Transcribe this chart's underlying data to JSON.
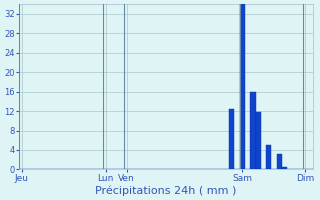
{
  "title": "",
  "xlabel": "Précipitations 24h ( mm )",
  "background_color": "#dff4f4",
  "bar_color": "#1144cc",
  "bar_edge_color": "#0033aa",
  "grid_color": "#aac8c8",
  "tick_label_color": "#3355bb",
  "xlabel_color": "#3355bb",
  "ylim": [
    0,
    34
  ],
  "yticks": [
    0,
    4,
    8,
    12,
    16,
    20,
    24,
    28,
    32
  ],
  "num_bars": 56,
  "bar_values": [
    0,
    0,
    0,
    0,
    0,
    0,
    0,
    0,
    0,
    0,
    0,
    0,
    0,
    0,
    0,
    0,
    0,
    0,
    0,
    0,
    0,
    0,
    0,
    0,
    0,
    0,
    0,
    0,
    0,
    0,
    0,
    0,
    0,
    0,
    0,
    0,
    0,
    0,
    0,
    0,
    12.5,
    0,
    34,
    0,
    16,
    11.8,
    0,
    5,
    0,
    3.2,
    0.5,
    0,
    0,
    0,
    0,
    0
  ],
  "xtick_positions": [
    0,
    16,
    20,
    42,
    54
  ],
  "xtick_labels": [
    "Jeu",
    "Lun",
    "Ven",
    "Sam",
    "Dim"
  ],
  "day_line_positions": [
    0,
    16,
    20,
    42,
    54
  ],
  "spine_color": "#aabbcc"
}
